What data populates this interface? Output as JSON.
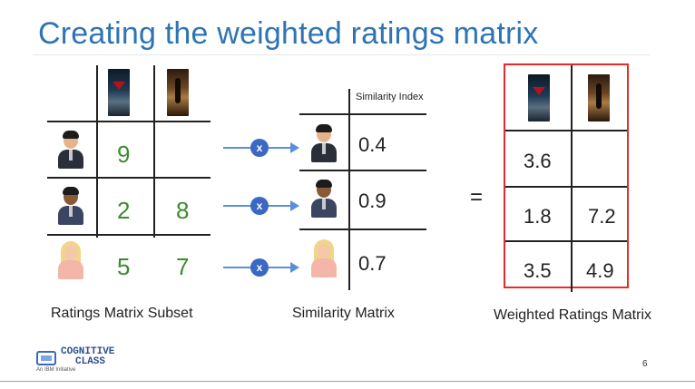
{
  "slide": {
    "title": "Creating the weighted ratings matrix",
    "page_number": "6"
  },
  "ratings_matrix": {
    "caption": "Ratings Matrix Subset",
    "movies": [
      "movie-poster-1",
      "movie-poster-2"
    ],
    "rows": [
      {
        "user": "man-suit-avatar",
        "values": [
          "9",
          ""
        ]
      },
      {
        "user": "man-dark-skin-avatar",
        "values": [
          "2",
          "8"
        ]
      },
      {
        "user": "blonde-woman-avatar",
        "values": [
          "5",
          "7"
        ]
      }
    ]
  },
  "operator": {
    "symbol": "x"
  },
  "similarity_matrix": {
    "caption": "Similarity Matrix",
    "header": "Similarity Index",
    "values": [
      "0.4",
      "0.9",
      "0.7"
    ]
  },
  "equals": "=",
  "weighted_matrix": {
    "caption": "Weighted Ratings Matrix",
    "rows": [
      [
        "3.6",
        ""
      ],
      [
        "1.8",
        "7.2"
      ],
      [
        "3.5",
        "4.9"
      ]
    ],
    "highlight_color": "#e52b2b"
  },
  "logo": {
    "line1": "COGNITIVE",
    "line2": "CLASS",
    "sub": "An IBM Initiative"
  },
  "colors": {
    "title": "#2e74b5",
    "ratings": "#3d8b2f",
    "operator": "#3a68c2"
  }
}
